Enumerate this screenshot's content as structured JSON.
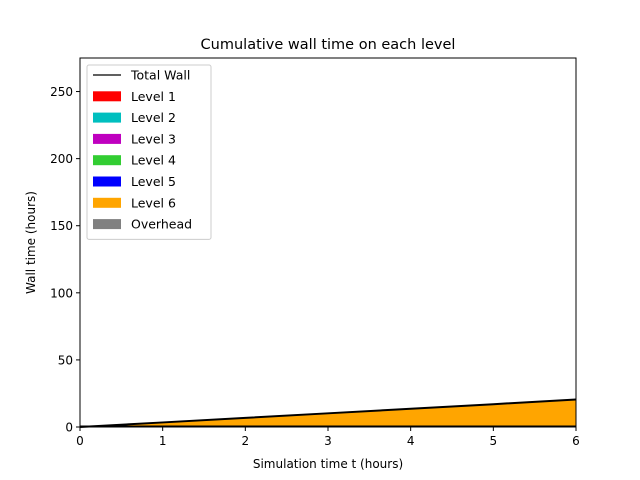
{
  "chart_data": {
    "type": "area",
    "title": "Cumulative wall time on each level",
    "xlabel": "Simulation time t (hours)",
    "ylabel": "Wall time (hours)",
    "xlim": [
      0,
      6
    ],
    "ylim": [
      0,
      275
    ],
    "xticks": [
      "0",
      "1",
      "2",
      "3",
      "4",
      "5",
      "6"
    ],
    "yticks": [
      "0",
      "50",
      "100",
      "150",
      "200",
      "250"
    ],
    "grid": false,
    "legend_position": "top-left",
    "x": [
      0,
      1,
      2,
      3,
      4,
      5,
      6
    ],
    "total_wall": {
      "name": "Total Wall",
      "color": "#000000",
      "values": [
        0,
        3.4,
        6.8,
        10.2,
        13.6,
        17.0,
        20.5
      ]
    },
    "series": [
      {
        "name": "Level 1",
        "color": "#ff0000",
        "values": [
          0,
          0.05,
          0.1,
          0.15,
          0.2,
          0.25,
          0.3
        ]
      },
      {
        "name": "Level 2",
        "color": "#00bfbf",
        "values": [
          0,
          0,
          0,
          0,
          0,
          0,
          0
        ]
      },
      {
        "name": "Level 3",
        "color": "#bf00bf",
        "values": [
          0,
          0,
          0,
          0,
          0,
          0,
          0
        ]
      },
      {
        "name": "Level 4",
        "color": "#32cd32",
        "values": [
          0,
          0,
          0,
          0,
          0,
          0,
          0
        ]
      },
      {
        "name": "Level 5",
        "color": "#0000ff",
        "values": [
          0,
          0,
          0,
          0,
          0,
          0,
          0
        ]
      },
      {
        "name": "Level 6",
        "color": "#ffa500",
        "values": [
          0,
          3.3,
          6.6,
          9.9,
          13.2,
          16.5,
          19.9
        ]
      },
      {
        "name": "Overhead",
        "color": "#808080",
        "values": [
          0,
          0.05,
          0.1,
          0.15,
          0.2,
          0.25,
          0.3
        ]
      }
    ]
  }
}
